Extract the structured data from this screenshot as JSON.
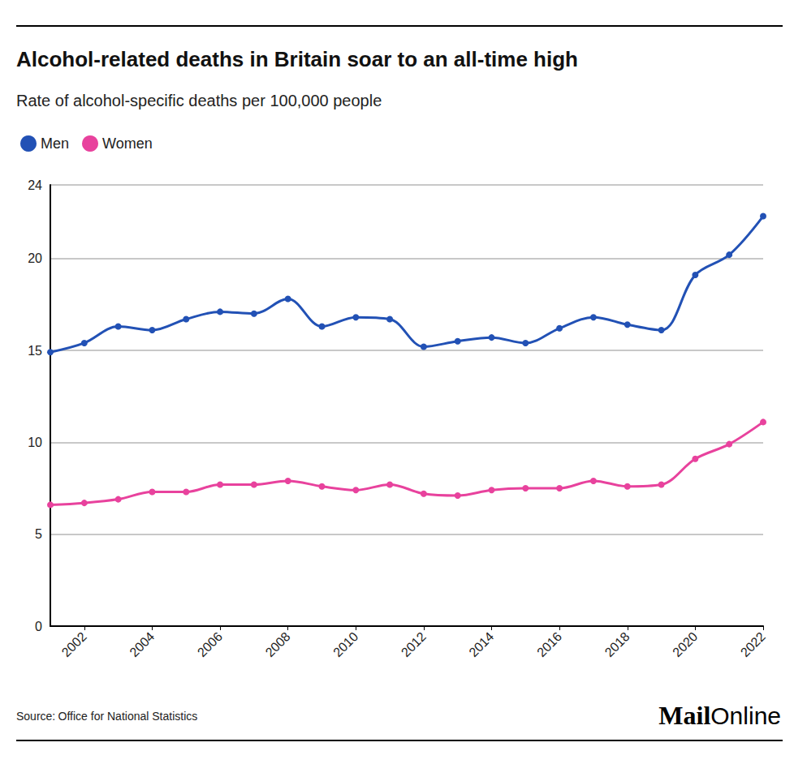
{
  "chart_data": {
    "type": "line",
    "title": "Alcohol-related deaths in Britain soar to an all-time high",
    "subtitle": "Rate of alcohol-specific deaths per 100,000 people",
    "x": [
      2001,
      2002,
      2003,
      2004,
      2005,
      2006,
      2007,
      2008,
      2009,
      2010,
      2011,
      2012,
      2013,
      2014,
      2015,
      2016,
      2017,
      2018,
      2019,
      2020,
      2021,
      2022
    ],
    "series": [
      {
        "name": "Men",
        "color": "#2251b5",
        "values": [
          14.9,
          15.4,
          16.3,
          16.1,
          16.7,
          17.1,
          17.0,
          17.8,
          16.3,
          16.8,
          16.7,
          15.2,
          15.5,
          15.7,
          15.4,
          16.2,
          16.8,
          16.4,
          16.1,
          19.1,
          20.2,
          22.3
        ]
      },
      {
        "name": "Women",
        "color": "#e8429d",
        "values": [
          6.6,
          6.7,
          6.9,
          7.3,
          7.3,
          7.7,
          7.7,
          7.9,
          7.6,
          7.4,
          7.7,
          7.2,
          7.1,
          7.4,
          7.5,
          7.5,
          7.9,
          7.6,
          7.7,
          9.1,
          9.9,
          11.1
        ]
      }
    ],
    "xlim": [
      2001,
      2022
    ],
    "xticks": [
      2002,
      2004,
      2006,
      2008,
      2010,
      2012,
      2014,
      2016,
      2018,
      2020,
      2022
    ],
    "ylim": [
      0,
      24
    ],
    "yticks": [
      0,
      5,
      10,
      15,
      20
    ],
    "grid": true,
    "legend": "top-left",
    "marker": "circle",
    "source_label": "Source:",
    "source": "Office for National Statistics",
    "logo": [
      "Mail",
      "Online"
    ]
  }
}
